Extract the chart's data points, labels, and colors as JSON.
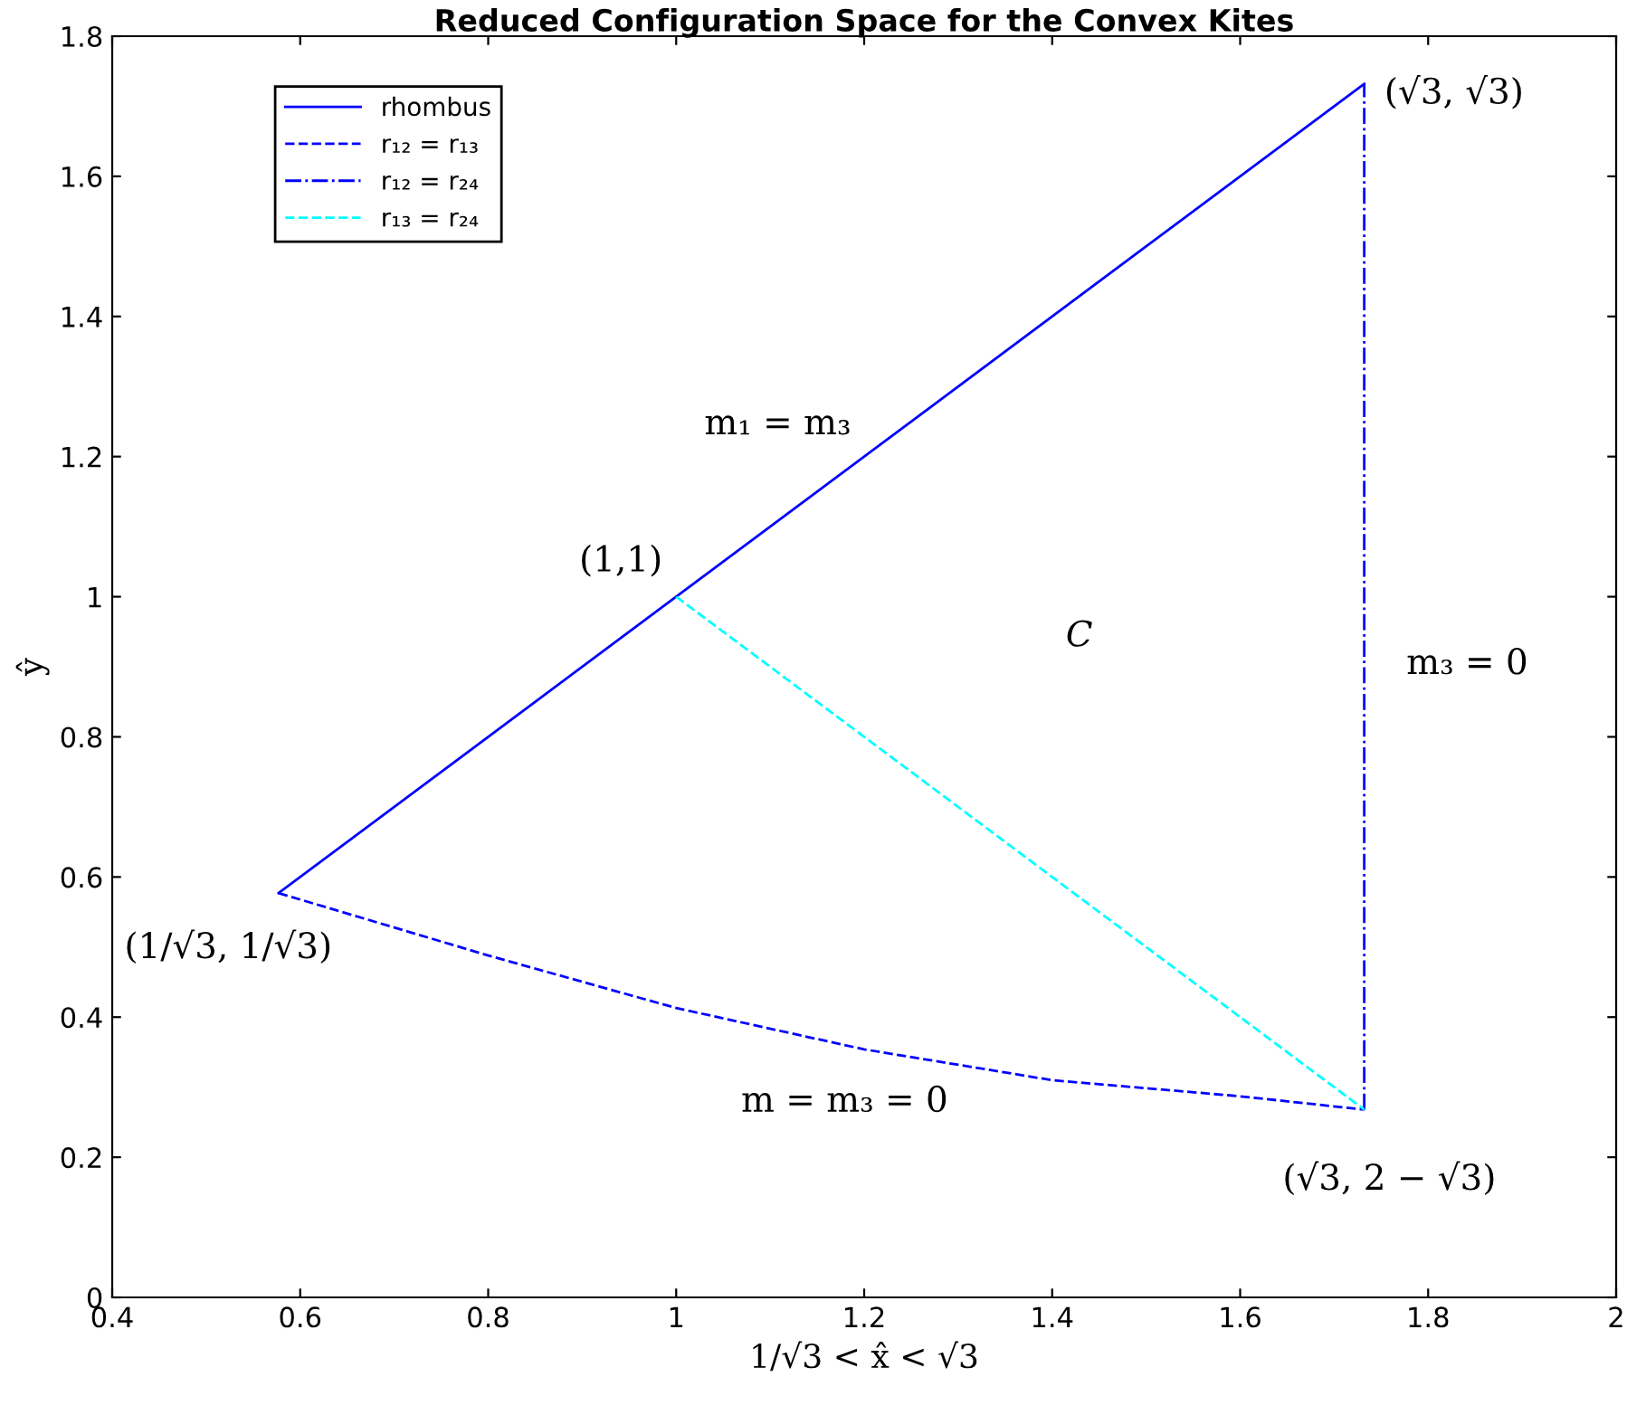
{
  "chart_data": {
    "type": "line",
    "title": "Reduced Configuration Space for the Convex Kites",
    "xlabel": "1/√3 < x̂ < √3",
    "ylabel": "ŷ",
    "xlim": [
      0.4,
      2
    ],
    "ylim": [
      0,
      1.8
    ],
    "xticks": [
      0.4,
      0.6,
      0.8,
      1,
      1.2,
      1.4,
      1.6,
      1.8,
      2
    ],
    "yticks": [
      0,
      0.2,
      0.4,
      0.6,
      0.8,
      1,
      1.2,
      1.4,
      1.6,
      1.8
    ],
    "grid": false,
    "legend": "top left",
    "series": [
      {
        "name": "rhombus",
        "color": "#0000ff",
        "line_style": "solid",
        "x": [
          0.577,
          1.732
        ],
        "values": [
          0.577,
          1.732
        ]
      },
      {
        "name": "r₁₂ = r₁₃",
        "color": "#0000ff",
        "line_style": "dashed",
        "x": [
          0.577,
          0.8,
          1.0,
          1.2,
          1.4,
          1.6,
          1.732
        ],
        "values": [
          0.577,
          0.488,
          0.413,
          0.354,
          0.31,
          0.287,
          0.268
        ]
      },
      {
        "name": "r₁₂ = r₂₄",
        "color": "#0000ff",
        "line_style": "dashdot",
        "x": [
          1.732,
          1.732
        ],
        "values": [
          0.268,
          1.732
        ]
      },
      {
        "name": "r₁₃ = r₂₄",
        "color": "#00ffff",
        "line_style": "dashed",
        "x": [
          1,
          1.732
        ],
        "values": [
          1,
          0.268
        ]
      }
    ],
    "annotations": [
      {
        "text": "(√3, √3)",
        "x": 1.732,
        "y": 1.732
      },
      "m₁ = m₃",
      {
        "text": "(1,1)",
        "x": 1,
        "y": 1
      },
      "C",
      "m₃ = 0",
      {
        "text": "(1/√3, 1/√3)",
        "x": 0.577,
        "y": 0.577
      },
      "m = m₃ = 0",
      {
        "text": "(√3, 2 − √3)",
        "x": 1.732,
        "y": 0.268
      }
    ]
  }
}
